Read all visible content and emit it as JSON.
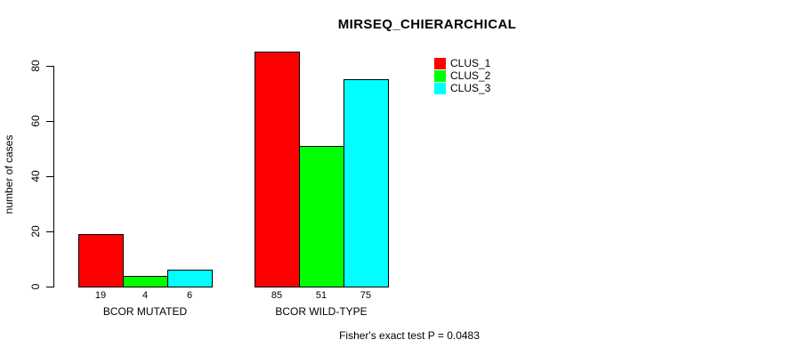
{
  "chart_data": {
    "type": "bar",
    "title": "MIRSEQ_CHIERARCHICAL",
    "ylabel": "number of cases",
    "xlabel": "",
    "categories": [
      "BCOR MUTATED",
      "BCOR WILD-TYPE"
    ],
    "series": [
      {
        "name": "CLUS_1",
        "color": "#FF0000",
        "values": [
          19,
          85
        ]
      },
      {
        "name": "CLUS_2",
        "color": "#00FF00",
        "values": [
          4,
          51
        ]
      },
      {
        "name": "CLUS_3",
        "color": "#00FFFF",
        "values": [
          6,
          75
        ]
      }
    ],
    "yticks": [
      0,
      20,
      40,
      60,
      80
    ],
    "ylim": [
      0,
      85
    ],
    "grid": false,
    "show_bar_values": true,
    "legend_position": "top-right",
    "legend_entries": [
      "CLUS_1",
      "CLUS_2",
      "CLUS_3"
    ],
    "annotation": "Fisher's exact test P = 0.0483"
  }
}
